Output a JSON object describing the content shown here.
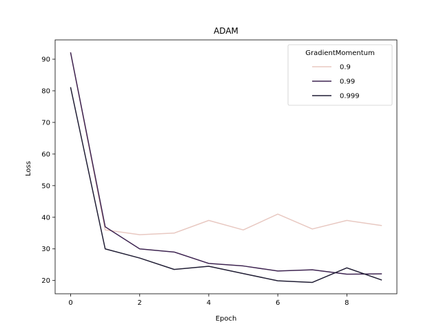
{
  "chart_data": {
    "type": "line",
    "title": "ADAM",
    "xlabel": "Epoch",
    "ylabel": "Loss",
    "xlim": [
      -0.45,
      9.45
    ],
    "ylim": [
      15.8,
      96.1
    ],
    "xticks": [
      0,
      2,
      4,
      6,
      8
    ],
    "xtick_labels": [
      "0",
      "2",
      "4",
      "6",
      "8"
    ],
    "yticks": [
      20,
      30,
      40,
      50,
      60,
      70,
      80,
      90
    ],
    "ytick_labels": [
      "20",
      "30",
      "40",
      "50",
      "60",
      "70",
      "80",
      "90"
    ],
    "grid": false,
    "legend": {
      "title": "GradientMomentum",
      "placement": "top-right"
    },
    "x": [
      0,
      1,
      2,
      3,
      4,
      5,
      6,
      7,
      8,
      9
    ],
    "series": [
      {
        "name": "0.9",
        "color": "#e8c8c1",
        "values": [
          92,
          36,
          34.5,
          35,
          39,
          36,
          41,
          36.3,
          39,
          37.4
        ]
      },
      {
        "name": "0.99",
        "color": "#3d2350",
        "values": [
          92,
          37,
          30,
          29,
          25.4,
          24.6,
          23,
          23.4,
          22,
          22.1
        ]
      },
      {
        "name": "0.999",
        "color": "#1f1c33",
        "values": [
          81,
          30,
          27.1,
          23.5,
          24.5,
          22.2,
          19.9,
          19.4,
          24,
          20.2
        ]
      }
    ]
  }
}
